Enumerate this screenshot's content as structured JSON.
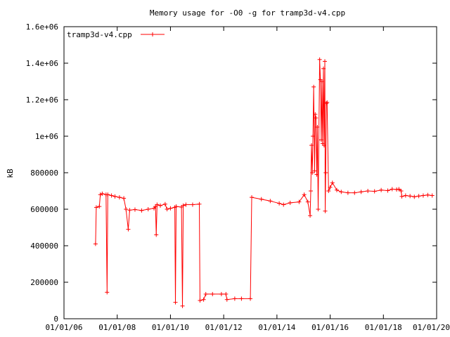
{
  "chart_data": {
    "type": "line",
    "title": "Memory usage for -O0 -g for tramp3d-v4.cpp",
    "xlabel": "",
    "ylabel": "kB",
    "x_tick_labels": [
      "01/01/06",
      "01/01/08",
      "01/01/10",
      "01/01/12",
      "01/01/14",
      "01/01/16",
      "01/01/18",
      "01/01/20"
    ],
    "y_tick_labels": [
      "0",
      "200000",
      "400000",
      "600000",
      "800000",
      "1e+06",
      "1.2e+06",
      "1.4e+06",
      "1.6e+06"
    ],
    "xlim": [
      "2006-01-01",
      "2020-01-01"
    ],
    "ylim": [
      0,
      1600000
    ],
    "legend": "top-left",
    "grid": false,
    "colors": {
      "series": "#ff0000",
      "axes": "#000000",
      "background": "#ffffff"
    },
    "series": [
      {
        "name": "tramp3d-v4.cpp",
        "points": [
          [
            "2007-03-10",
            410000
          ],
          [
            "2007-03-20",
            610000
          ],
          [
            "2007-05-01",
            615000
          ],
          [
            "2007-05-15",
            680000
          ],
          [
            "2007-06-10",
            685000
          ],
          [
            "2007-08-01",
            680000
          ],
          [
            "2007-08-15",
            145000
          ],
          [
            "2007-08-25",
            680000
          ],
          [
            "2007-10-15",
            675000
          ],
          [
            "2007-12-01",
            670000
          ],
          [
            "2008-02-01",
            665000
          ],
          [
            "2008-04-01",
            660000
          ],
          [
            "2008-05-01",
            600000
          ],
          [
            "2008-06-01",
            490000
          ],
          [
            "2008-06-20",
            595000
          ],
          [
            "2008-09-01",
            598000
          ],
          [
            "2008-12-01",
            593000
          ],
          [
            "2009-03-01",
            600000
          ],
          [
            "2009-05-20",
            605000
          ],
          [
            "2009-06-10",
            615000
          ],
          [
            "2009-06-20",
            460000
          ],
          [
            "2009-07-01",
            625000
          ],
          [
            "2009-08-15",
            620000
          ],
          [
            "2009-10-20",
            628000
          ],
          [
            "2009-11-15",
            600000
          ],
          [
            "2010-01-01",
            605000
          ],
          [
            "2010-03-01",
            610000
          ],
          [
            "2010-03-10",
            90000
          ],
          [
            "2010-03-20",
            615000
          ],
          [
            "2010-06-01",
            612000
          ],
          [
            "2010-06-15",
            70000
          ],
          [
            "2010-06-25",
            620000
          ],
          [
            "2010-08-01",
            625000
          ],
          [
            "2010-11-01",
            625000
          ],
          [
            "2011-02-01",
            628000
          ],
          [
            "2011-02-10",
            100000
          ],
          [
            "2011-04-01",
            105000
          ],
          [
            "2011-05-01",
            135000
          ],
          [
            "2011-08-01",
            135000
          ],
          [
            "2011-12-01",
            135000
          ],
          [
            "2012-02-01",
            135000
          ],
          [
            "2012-02-15",
            105000
          ],
          [
            "2012-06-01",
            110000
          ],
          [
            "2012-09-01",
            110000
          ],
          [
            "2013-01-01",
            110000
          ],
          [
            "2013-01-20",
            665000
          ],
          [
            "2013-06-01",
            655000
          ],
          [
            "2013-10-01",
            645000
          ],
          [
            "2014-02-01",
            632000
          ],
          [
            "2014-04-01",
            625000
          ],
          [
            "2014-07-01",
            635000
          ],
          [
            "2014-11-01",
            640000
          ],
          [
            "2015-01-10",
            680000
          ],
          [
            "2015-03-01",
            640000
          ],
          [
            "2015-04-01",
            565000
          ],
          [
            "2015-04-10",
            700000
          ],
          [
            "2015-04-20",
            950000
          ],
          [
            "2015-05-01",
            800000
          ],
          [
            "2015-05-10",
            1000000
          ],
          [
            "2015-05-20",
            1270000
          ],
          [
            "2015-06-01",
            810000
          ],
          [
            "2015-06-10",
            1120000
          ],
          [
            "2015-06-20",
            1100000
          ],
          [
            "2015-07-01",
            790000
          ],
          [
            "2015-07-10",
            1050000
          ],
          [
            "2015-07-20",
            600000
          ],
          [
            "2015-08-10",
            1420000
          ],
          [
            "2015-08-20",
            1310000
          ],
          [
            "2015-09-01",
            980000
          ],
          [
            "2015-09-10",
            1300000
          ],
          [
            "2015-09-20",
            960000
          ],
          [
            "2015-10-01",
            1370000
          ],
          [
            "2015-10-10",
            950000
          ],
          [
            "2015-10-20",
            1410000
          ],
          [
            "2015-10-25",
            590000
          ],
          [
            "2015-11-01",
            800000
          ],
          [
            "2015-11-10",
            1180000
          ],
          [
            "2015-11-20",
            1185000
          ],
          [
            "2015-12-10",
            700000
          ],
          [
            "2016-01-01",
            720000
          ],
          [
            "2016-02-01",
            745000
          ],
          [
            "2016-04-01",
            705000
          ],
          [
            "2016-06-01",
            695000
          ],
          [
            "2016-09-01",
            690000
          ],
          [
            "2016-12-01",
            690000
          ],
          [
            "2017-03-01",
            695000
          ],
          [
            "2017-06-01",
            700000
          ],
          [
            "2017-09-01",
            698000
          ],
          [
            "2017-12-01",
            705000
          ],
          [
            "2018-03-01",
            702000
          ],
          [
            "2018-05-01",
            710000
          ],
          [
            "2018-07-01",
            708000
          ],
          [
            "2018-08-01",
            710000
          ],
          [
            "2018-09-01",
            700000
          ],
          [
            "2018-09-10",
            670000
          ],
          [
            "2018-11-01",
            675000
          ],
          [
            "2019-01-01",
            672000
          ],
          [
            "2019-03-01",
            668000
          ],
          [
            "2019-05-01",
            672000
          ],
          [
            "2019-07-01",
            675000
          ],
          [
            "2019-09-01",
            678000
          ],
          [
            "2019-11-01",
            675000
          ]
        ]
      }
    ]
  }
}
